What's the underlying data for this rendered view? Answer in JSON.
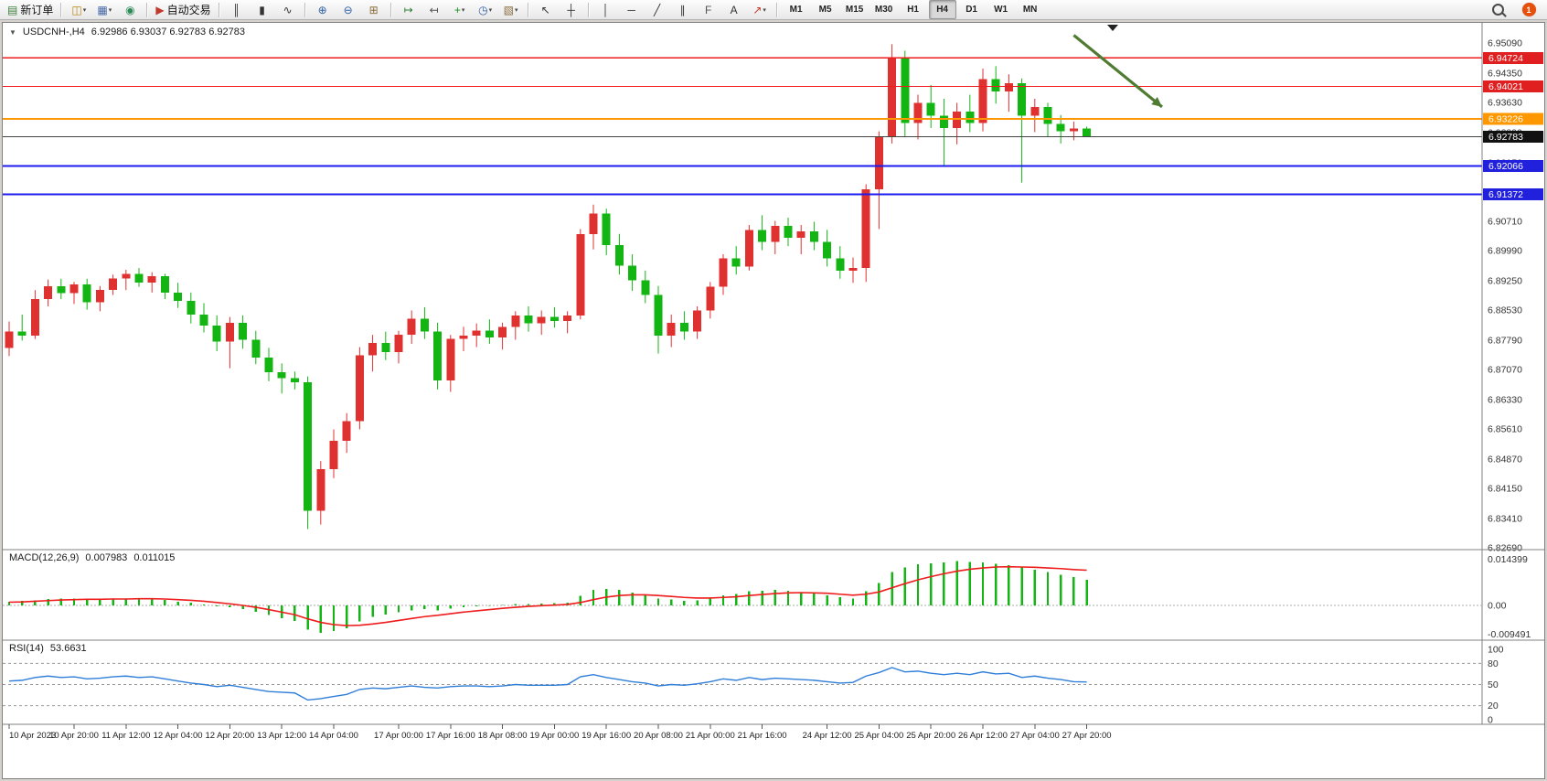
{
  "toolbar": {
    "notification_count": "1",
    "active_timeframe": "H4",
    "items": [
      {
        "kind": "button",
        "name": "new-order-button",
        "icon": "new-order-icon",
        "glyph": "▤",
        "color": "#3a7d3a",
        "label": "新订单"
      },
      {
        "kind": "sep"
      },
      {
        "kind": "button",
        "name": "new-chart-button",
        "icon": "new-chart-icon",
        "glyph": "◫",
        "color": "#b8860b",
        "caret": true
      },
      {
        "kind": "button",
        "name": "profiles-button",
        "icon": "profiles-icon",
        "glyph": "▦",
        "color": "#4466aa",
        "caret": true
      },
      {
        "kind": "button",
        "name": "metaeditor-button",
        "icon": "metaeditor-icon",
        "glyph": "◉",
        "color": "#2e8b57"
      },
      {
        "kind": "sep"
      },
      {
        "kind": "button",
        "name": "autotrading-button",
        "icon": "autotrading-icon",
        "glyph": "▶",
        "color": "#c0392b",
        "label": "自动交易"
      },
      {
        "kind": "sep"
      },
      {
        "kind": "button",
        "name": "bar-chart-button",
        "icon": "bar-chart-icon",
        "glyph": "║",
        "color": "#333333"
      },
      {
        "kind": "button",
        "name": "candlestick-chart-button",
        "icon": "candlestick-icon",
        "glyph": "▮",
        "color": "#333333"
      },
      {
        "kind": "button",
        "name": "line-chart-button",
        "icon": "line-chart-icon",
        "glyph": "∿",
        "color": "#333333"
      },
      {
        "kind": "sep"
      },
      {
        "kind": "button",
        "name": "zoom-in-button",
        "icon": "zoom-in-icon",
        "glyph": "⊕",
        "color": "#2e5fa3"
      },
      {
        "kind": "button",
        "name": "zoom-out-button",
        "icon": "zoom-out-icon",
        "glyph": "⊖",
        "color": "#2e5fa3"
      },
      {
        "kind": "button",
        "name": "tile-windows-button",
        "icon": "tile-windows-icon",
        "glyph": "⊞",
        "color": "#8a6d3b"
      },
      {
        "kind": "sep"
      },
      {
        "kind": "button",
        "name": "auto-scroll-button",
        "icon": "auto-scroll-icon",
        "glyph": "↦",
        "color": "#2e7d32"
      },
      {
        "kind": "button",
        "name": "chart-shift-button",
        "icon": "chart-shift-icon",
        "glyph": "↤",
        "color": "#555555"
      },
      {
        "kind": "button",
        "name": "indicators-button",
        "icon": "indicators-icon",
        "glyph": "+",
        "color": "#1e8e1e",
        "caret": true
      },
      {
        "kind": "button",
        "name": "periods-button",
        "icon": "periods-icon",
        "glyph": "◷",
        "color": "#2e5fa3",
        "caret": true
      },
      {
        "kind": "button",
        "name": "templates-button",
        "icon": "templates-icon",
        "glyph": "▧",
        "color": "#8a6d3b",
        "caret": true
      },
      {
        "kind": "sep"
      },
      {
        "kind": "button",
        "name": "cursor-button",
        "icon": "cursor-icon",
        "glyph": "↖",
        "color": "#333333"
      },
      {
        "kind": "button",
        "name": "crosshair-button",
        "icon": "crosshair-icon",
        "glyph": "┼",
        "color": "#333333"
      },
      {
        "kind": "sep"
      },
      {
        "kind": "button",
        "name": "vertical-line-button",
        "icon": "vertical-line-icon",
        "glyph": "│",
        "color": "#333333"
      },
      {
        "kind": "button",
        "name": "horizontal-line-button",
        "icon": "horizontal-line-icon",
        "glyph": "─",
        "color": "#333333"
      },
      {
        "kind": "button",
        "name": "trendline-button",
        "icon": "trendline-icon",
        "glyph": "╱",
        "color": "#333333"
      },
      {
        "kind": "button",
        "name": "channel-button",
        "icon": "channel-icon",
        "glyph": "∥",
        "color": "#333333"
      },
      {
        "kind": "button",
        "name": "fibonacci-button",
        "icon": "fibonacci-icon",
        "glyph": "F",
        "color": "#555555"
      },
      {
        "kind": "button",
        "name": "text-button",
        "icon": "text-icon",
        "glyph": "A",
        "color": "#333333"
      },
      {
        "kind": "button",
        "name": "arrows-button",
        "icon": "arrows-icon",
        "glyph": "↗",
        "color": "#c0392b",
        "caret": true
      },
      {
        "kind": "sep"
      },
      {
        "kind": "tf",
        "name": "timeframe-m1-button",
        "label": "M1"
      },
      {
        "kind": "tf",
        "name": "timeframe-m5-button",
        "label": "M5"
      },
      {
        "kind": "tf",
        "name": "timeframe-m15-button",
        "label": "M15"
      },
      {
        "kind": "tf",
        "name": "timeframe-m30-button",
        "label": "M30"
      },
      {
        "kind": "tf",
        "name": "timeframe-h1-button",
        "label": "H1"
      },
      {
        "kind": "tf",
        "name": "timeframe-h4-button",
        "label": "H4"
      },
      {
        "kind": "tf",
        "name": "timeframe-d1-button",
        "label": "D1"
      },
      {
        "kind": "tf",
        "name": "timeframe-w1-button",
        "label": "W1"
      },
      {
        "kind": "tf",
        "name": "timeframe-mn-button",
        "label": "MN"
      }
    ]
  },
  "chart": {
    "symbol": "USDCNH-,H4",
    "ohlc": "6.92986 6.93037 6.92783 6.92783",
    "colors": {
      "up": "#e03131",
      "down": "#13b513"
    },
    "price_ticks": [
      "6.95090",
      "6.94350",
      "6.93630",
      "6.92890",
      "6.92150",
      "6.91430",
      "6.90710",
      "6.89990",
      "6.89250",
      "6.88530",
      "6.87790",
      "6.87070",
      "6.86330",
      "6.85610",
      "6.84870",
      "6.84150",
      "6.83410",
      "6.82690"
    ],
    "hlines": [
      {
        "price": 6.94724,
        "label": "6.94724",
        "color": "#ee1c1c",
        "badge": "#e02020",
        "width": 1.2
      },
      {
        "price": 6.94021,
        "label": "6.94021",
        "color": "#ee1c1c",
        "badge": "#e02020",
        "width": 1.2
      },
      {
        "price": 6.93226,
        "label": "6.93226",
        "color": "#ff9800",
        "badge": "#ff9800",
        "width": 2
      },
      {
        "price": 6.92783,
        "label": "6.92783",
        "color": "#444444",
        "badge": "#111111",
        "width": 1
      },
      {
        "price": 6.92066,
        "label": "6.92066",
        "color": "#1c1cee",
        "badge": "#2020dd",
        "width": 2
      },
      {
        "price": 6.91372,
        "label": "6.91372",
        "color": "#1c1cee",
        "badge": "#2020dd",
        "width": 2
      }
    ],
    "arrow": {
      "from_candle": 82,
      "from_price": 6.9528,
      "to_candle": 88.8,
      "to_price": 6.9352,
      "color": "#4f7b32"
    },
    "shift_marker_candle": 85,
    "time_labels": [
      [
        "10 Apr 2023",
        0
      ],
      [
        "10 Apr 20:00",
        5
      ],
      [
        "11 Apr 12:00",
        9
      ],
      [
        "12 Apr 04:00",
        13
      ],
      [
        "12 Apr 20:00",
        17
      ],
      [
        "13 Apr 12:00",
        21
      ],
      [
        "14 Apr 04:00",
        25
      ],
      [
        "17 Apr 00:00",
        30
      ],
      [
        "17 Apr 16:00",
        34
      ],
      [
        "18 Apr 08:00",
        38
      ],
      [
        "19 Apr 00:00",
        42
      ],
      [
        "19 Apr 16:00",
        46
      ],
      [
        "20 Apr 08:00",
        50
      ],
      [
        "21 Apr 00:00",
        54
      ],
      [
        "21 Apr 16:00",
        58
      ],
      [
        "24 Apr 12:00",
        63
      ],
      [
        "25 Apr 04:00",
        67
      ],
      [
        "25 Apr 20:00",
        71
      ],
      [
        "26 Apr 12:00",
        75
      ],
      [
        "27 Apr 04:00",
        79
      ],
      [
        "27 Apr 20:00",
        83
      ]
    ],
    "candles": [
      [
        6.876,
        6.8825,
        6.874,
        6.88
      ],
      [
        6.88,
        6.8842,
        6.8778,
        6.879
      ],
      [
        6.879,
        6.8902,
        6.8782,
        6.888
      ],
      [
        6.888,
        6.8928,
        6.8862,
        6.8912
      ],
      [
        6.8912,
        6.893,
        6.888,
        6.8895
      ],
      [
        6.8895,
        6.8922,
        6.8868,
        6.8916
      ],
      [
        6.8916,
        6.893,
        6.8854,
        6.8872
      ],
      [
        6.8872,
        6.8912,
        6.885,
        6.8902
      ],
      [
        6.8902,
        6.894,
        6.889,
        6.893
      ],
      [
        6.893,
        6.8952,
        6.8902,
        6.8942
      ],
      [
        6.8942,
        6.8956,
        6.891,
        6.892
      ],
      [
        6.892,
        6.8946,
        6.8896,
        6.8936
      ],
      [
        6.8936,
        6.8942,
        6.888,
        6.8896
      ],
      [
        6.8896,
        6.892,
        6.8858,
        6.8876
      ],
      [
        6.8876,
        6.8896,
        6.882,
        6.8842
      ],
      [
        6.8842,
        6.887,
        6.8798,
        6.8815
      ],
      [
        6.8815,
        6.884,
        6.8752,
        6.8776
      ],
      [
        6.8776,
        6.8836,
        6.871,
        6.8822
      ],
      [
        6.8822,
        6.884,
        6.8758,
        6.878
      ],
      [
        6.878,
        6.8802,
        6.872,
        6.8736
      ],
      [
        6.8736,
        6.876,
        6.8678,
        6.87
      ],
      [
        6.87,
        6.8722,
        6.8648,
        6.8686
      ],
      [
        6.8686,
        6.8702,
        6.8658,
        6.8676
      ],
      [
        6.8676,
        6.869,
        6.8315,
        6.836
      ],
      [
        6.836,
        6.8482,
        6.8326,
        6.8462
      ],
      [
        6.8462,
        6.856,
        6.844,
        6.8532
      ],
      [
        6.8532,
        6.86,
        6.8502,
        6.858
      ],
      [
        6.858,
        6.8762,
        6.856,
        6.8742
      ],
      [
        6.8742,
        6.8792,
        6.8702,
        6.8772
      ],
      [
        6.8772,
        6.88,
        6.873,
        6.875
      ],
      [
        6.875,
        6.8802,
        6.8722,
        6.8792
      ],
      [
        6.8792,
        6.8852,
        6.877,
        6.8832
      ],
      [
        6.8832,
        6.886,
        6.8782,
        6.88
      ],
      [
        6.88,
        6.8822,
        6.8658,
        6.868
      ],
      [
        6.868,
        6.8792,
        6.8652,
        6.8782
      ],
      [
        6.8782,
        6.8812,
        6.8752,
        6.879
      ],
      [
        6.879,
        6.882,
        6.8762,
        6.8802
      ],
      [
        6.8802,
        6.883,
        6.877,
        6.8786
      ],
      [
        6.8786,
        6.8822,
        6.8756,
        6.8812
      ],
      [
        6.8812,
        6.885,
        6.878,
        6.884
      ],
      [
        6.884,
        6.8862,
        6.88,
        6.882
      ],
      [
        6.882,
        6.8852,
        6.8792,
        6.8836
      ],
      [
        6.8836,
        6.886,
        6.881,
        6.8826
      ],
      [
        6.8826,
        6.885,
        6.8796,
        6.884
      ],
      [
        6.884,
        6.9052,
        6.883,
        6.904
      ],
      [
        6.904,
        6.9112,
        6.9002,
        6.909
      ],
      [
        6.909,
        6.9102,
        6.8988,
        6.9012
      ],
      [
        6.9012,
        6.904,
        6.894,
        6.8962
      ],
      [
        6.8962,
        6.899,
        6.89,
        6.8926
      ],
      [
        6.8926,
        6.895,
        6.887,
        6.889
      ],
      [
        6.889,
        6.8912,
        6.8746,
        6.879
      ],
      [
        6.879,
        6.8842,
        6.8762,
        6.8822
      ],
      [
        6.8822,
        6.885,
        6.878,
        6.88
      ],
      [
        6.88,
        6.8862,
        6.8782,
        6.8852
      ],
      [
        6.8852,
        6.8922,
        6.8832,
        6.891
      ],
      [
        6.891,
        6.899,
        6.889,
        6.898
      ],
      [
        6.898,
        6.901,
        6.894,
        6.896
      ],
      [
        6.896,
        6.9062,
        6.895,
        6.905
      ],
      [
        6.905,
        6.9086,
        6.9,
        6.902
      ],
      [
        6.902,
        6.9072,
        6.899,
        6.906
      ],
      [
        6.906,
        6.908,
        6.901,
        6.903
      ],
      [
        6.903,
        6.9062,
        6.899,
        6.9046
      ],
      [
        6.9046,
        6.907,
        6.9,
        6.902
      ],
      [
        6.902,
        6.905,
        6.896,
        6.898
      ],
      [
        6.898,
        6.901,
        6.893,
        6.895
      ],
      [
        6.895,
        6.8982,
        6.892,
        6.8956
      ],
      [
        6.8956,
        6.9162,
        6.8922,
        6.915
      ],
      [
        6.915,
        6.9292,
        6.9052,
        6.928
      ],
      [
        6.928,
        6.9506,
        6.9262,
        6.9472
      ],
      [
        6.9472,
        6.949,
        6.928,
        6.9312
      ],
      [
        6.9312,
        6.9382,
        6.9272,
        6.9362
      ],
      [
        6.9362,
        6.9406,
        6.93,
        6.933
      ],
      [
        6.933,
        6.9372,
        6.9206,
        6.93
      ],
      [
        6.93,
        6.9362,
        6.926,
        6.934
      ],
      [
        6.934,
        6.9382,
        6.929,
        6.9312
      ],
      [
        6.9312,
        6.9446,
        6.9292,
        6.942
      ],
      [
        6.942,
        6.9452,
        6.936,
        6.939
      ],
      [
        6.939,
        6.9432,
        6.934,
        6.941
      ],
      [
        6.941,
        6.9422,
        6.9166,
        6.933
      ],
      [
        6.933,
        6.9372,
        6.929,
        6.9352
      ],
      [
        6.9352,
        6.9362,
        6.928,
        6.931
      ],
      [
        6.931,
        6.9332,
        6.9262,
        6.9292
      ],
      [
        6.9292,
        6.9316,
        6.927,
        6.9299
      ],
      [
        6.92986,
        6.93037,
        6.92783,
        6.92783
      ]
    ]
  },
  "macd": {
    "title": "MACD(12,26,9)",
    "main_value": "0.007983",
    "signal_value": "0.011015",
    "scale_labels": [
      "0.014399",
      "0.00",
      "-0.009491"
    ],
    "scale_values": [
      0.014399,
      0,
      -0.009491
    ],
    "colors": {
      "hist": "#13b513",
      "signal": "#ee1c1c"
    },
    "hist": [
      0.0012,
      0.0014,
      0.0016,
      0.002,
      0.0022,
      0.0022,
      0.002,
      0.0019,
      0.002,
      0.0022,
      0.0021,
      0.002,
      0.0017,
      0.0012,
      0.0008,
      0.0003,
      -0.0003,
      -0.0006,
      -0.0012,
      -0.002,
      -0.003,
      -0.004,
      -0.0048,
      -0.0075,
      -0.0085,
      -0.008,
      -0.0072,
      -0.005,
      -0.0035,
      -0.0028,
      -0.0022,
      -0.0015,
      -0.0012,
      -0.0015,
      -0.001,
      -0.0006,
      -0.0003,
      -0.0002,
      0.0001,
      0.0004,
      0.0005,
      0.0006,
      0.0007,
      0.0009,
      0.003,
      0.0048,
      0.0052,
      0.0048,
      0.004,
      0.0032,
      0.0022,
      0.0018,
      0.0015,
      0.0016,
      0.0022,
      0.0032,
      0.0036,
      0.0044,
      0.0046,
      0.0048,
      0.0046,
      0.0042,
      0.0038,
      0.0032,
      0.0026,
      0.0022,
      0.0045,
      0.007,
      0.0105,
      0.0118,
      0.0128,
      0.0132,
      0.0135,
      0.0138,
      0.0136,
      0.0134,
      0.013,
      0.0126,
      0.012,
      0.0112,
      0.0104,
      0.0096,
      0.0088,
      0.008
    ],
    "signal": [
      0.001,
      0.0011,
      0.0013,
      0.0015,
      0.0017,
      0.0018,
      0.0019,
      0.0019,
      0.002,
      0.002,
      0.0021,
      0.0021,
      0.002,
      0.0018,
      0.0016,
      0.0013,
      0.0009,
      0.0005,
      0.0,
      -0.0006,
      -0.0013,
      -0.0021,
      -0.0029,
      -0.0042,
      -0.0053,
      -0.006,
      -0.0063,
      -0.0062,
      -0.0058,
      -0.0053,
      -0.0047,
      -0.0041,
      -0.0035,
      -0.0031,
      -0.0026,
      -0.0021,
      -0.0017,
      -0.0013,
      -0.0009,
      -0.0006,
      -0.0003,
      -0.0001,
      0.0001,
      0.0003,
      0.0009,
      0.0018,
      0.0026,
      0.0031,
      0.0033,
      0.0033,
      0.0031,
      0.0028,
      0.0025,
      0.0023,
      0.0023,
      0.0025,
      0.0027,
      0.0031,
      0.0034,
      0.0037,
      0.0039,
      0.004,
      0.0039,
      0.0038,
      0.0035,
      0.0032,
      0.0035,
      0.0042,
      0.0055,
      0.0068,
      0.008,
      0.009,
      0.0099,
      0.0107,
      0.0113,
      0.0117,
      0.012,
      0.0121,
      0.012,
      0.0119,
      0.0117,
      0.0115,
      0.0112,
      0.011
    ]
  },
  "rsi": {
    "title": "RSI(14)",
    "value": "53.6631",
    "color": "#2f7ed8",
    "levels": [
      "100",
      "80",
      "50",
      "20",
      "0"
    ],
    "level_values": [
      100,
      80,
      50,
      20,
      0
    ],
    "series": [
      55,
      56,
      60,
      62,
      60,
      61,
      58,
      59,
      61,
      62,
      60,
      61,
      58,
      55,
      52,
      50,
      47,
      49,
      46,
      43,
      40,
      39,
      38,
      28,
      30,
      33,
      36,
      43,
      45,
      44,
      46,
      48,
      46,
      45,
      47,
      48,
      48,
      47,
      48,
      50,
      49,
      49,
      49,
      50,
      61,
      64,
      60,
      57,
      54,
      52,
      48,
      50,
      49,
      51,
      54,
      58,
      56,
      60,
      57,
      59,
      58,
      57,
      56,
      54,
      52,
      53,
      62,
      67,
      74,
      68,
      69,
      66,
      64,
      66,
      64,
      68,
      65,
      66,
      60,
      62,
      59,
      57,
      54,
      53.66
    ]
  }
}
